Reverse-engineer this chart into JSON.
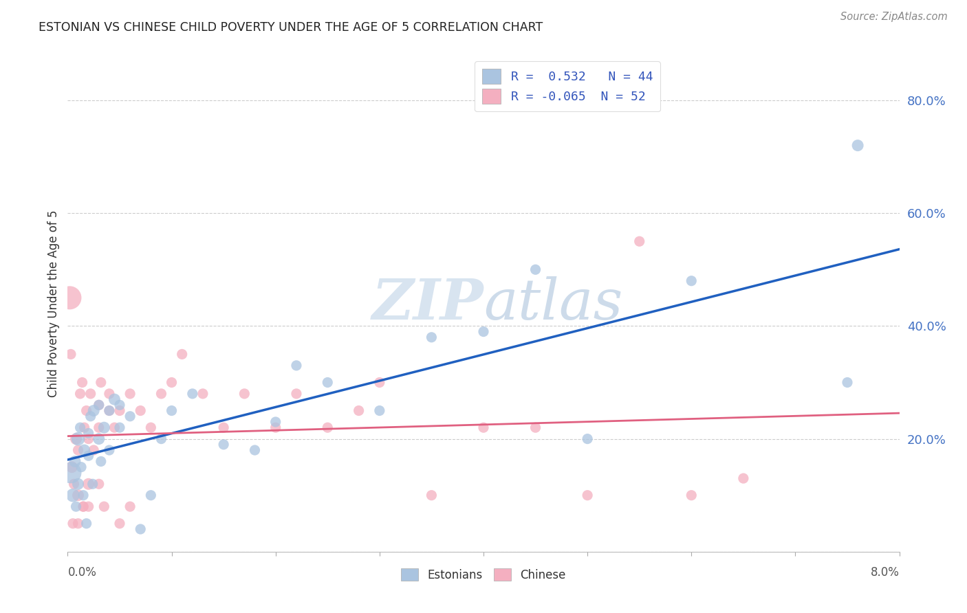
{
  "title": "ESTONIAN VS CHINESE CHILD POVERTY UNDER THE AGE OF 5 CORRELATION CHART",
  "source": "Source: ZipAtlas.com",
  "ylabel": "Child Poverty Under the Age of 5",
  "ylim": [
    0,
    0.88
  ],
  "xlim": [
    0,
    0.08
  ],
  "yticks": [
    0.0,
    0.2,
    0.4,
    0.6,
    0.8
  ],
  "estonian_R": 0.532,
  "estonian_N": 44,
  "chinese_R": -0.065,
  "chinese_N": 52,
  "estonian_color": "#aac4e0",
  "chinese_color": "#f4afc0",
  "estonian_line_color": "#2060c0",
  "chinese_line_color": "#e06080",
  "background_color": "#ffffff",
  "watermark_color": "#d8e4f0",
  "est_x": [
    0.0003,
    0.0005,
    0.0007,
    0.0008,
    0.001,
    0.001,
    0.0012,
    0.0013,
    0.0015,
    0.0016,
    0.0018,
    0.002,
    0.002,
    0.0022,
    0.0024,
    0.0025,
    0.003,
    0.003,
    0.0032,
    0.0035,
    0.004,
    0.004,
    0.0045,
    0.005,
    0.005,
    0.006,
    0.007,
    0.008,
    0.009,
    0.01,
    0.012,
    0.015,
    0.018,
    0.02,
    0.022,
    0.025,
    0.03,
    0.035,
    0.04,
    0.045,
    0.05,
    0.06,
    0.075,
    0.076
  ],
  "est_y": [
    0.14,
    0.1,
    0.16,
    0.08,
    0.2,
    0.12,
    0.22,
    0.15,
    0.1,
    0.18,
    0.05,
    0.21,
    0.17,
    0.24,
    0.12,
    0.25,
    0.2,
    0.26,
    0.16,
    0.22,
    0.25,
    0.18,
    0.27,
    0.22,
    0.26,
    0.24,
    0.04,
    0.1,
    0.2,
    0.25,
    0.28,
    0.19,
    0.18,
    0.23,
    0.33,
    0.3,
    0.25,
    0.38,
    0.39,
    0.5,
    0.2,
    0.48,
    0.3,
    0.72
  ],
  "est_size": [
    500,
    200,
    150,
    120,
    200,
    150,
    120,
    120,
    120,
    150,
    120,
    120,
    120,
    120,
    120,
    150,
    150,
    120,
    120,
    150,
    120,
    120,
    150,
    120,
    120,
    120,
    120,
    120,
    120,
    120,
    120,
    120,
    120,
    120,
    120,
    120,
    120,
    120,
    120,
    120,
    120,
    120,
    120,
    150
  ],
  "chi_x": [
    0.0002,
    0.0004,
    0.0006,
    0.0008,
    0.001,
    0.001,
    0.0012,
    0.0014,
    0.0015,
    0.0016,
    0.0018,
    0.002,
    0.002,
    0.0022,
    0.0025,
    0.003,
    0.003,
    0.0032,
    0.0035,
    0.004,
    0.004,
    0.0045,
    0.005,
    0.005,
    0.006,
    0.006,
    0.007,
    0.008,
    0.009,
    0.01,
    0.011,
    0.013,
    0.015,
    0.017,
    0.02,
    0.022,
    0.025,
    0.028,
    0.03,
    0.035,
    0.04,
    0.045,
    0.05,
    0.055,
    0.06,
    0.065,
    0.0003,
    0.0005,
    0.001,
    0.0015,
    0.002,
    0.003
  ],
  "chi_y": [
    0.45,
    0.15,
    0.12,
    0.2,
    0.1,
    0.18,
    0.28,
    0.3,
    0.08,
    0.22,
    0.25,
    0.12,
    0.2,
    0.28,
    0.18,
    0.26,
    0.22,
    0.3,
    0.08,
    0.25,
    0.28,
    0.22,
    0.25,
    0.05,
    0.28,
    0.08,
    0.25,
    0.22,
    0.28,
    0.3,
    0.35,
    0.28,
    0.22,
    0.28,
    0.22,
    0.28,
    0.22,
    0.25,
    0.3,
    0.1,
    0.22,
    0.22,
    0.1,
    0.55,
    0.1,
    0.13,
    0.35,
    0.05,
    0.05,
    0.08,
    0.08,
    0.12
  ],
  "chi_size": [
    600,
    150,
    120,
    150,
    150,
    120,
    120,
    120,
    120,
    120,
    120,
    150,
    120,
    120,
    120,
    120,
    120,
    120,
    120,
    120,
    120,
    120,
    120,
    120,
    120,
    120,
    120,
    120,
    120,
    120,
    120,
    120,
    120,
    120,
    120,
    120,
    120,
    120,
    120,
    120,
    120,
    120,
    120,
    120,
    120,
    120,
    120,
    120,
    120,
    120,
    120,
    120
  ]
}
